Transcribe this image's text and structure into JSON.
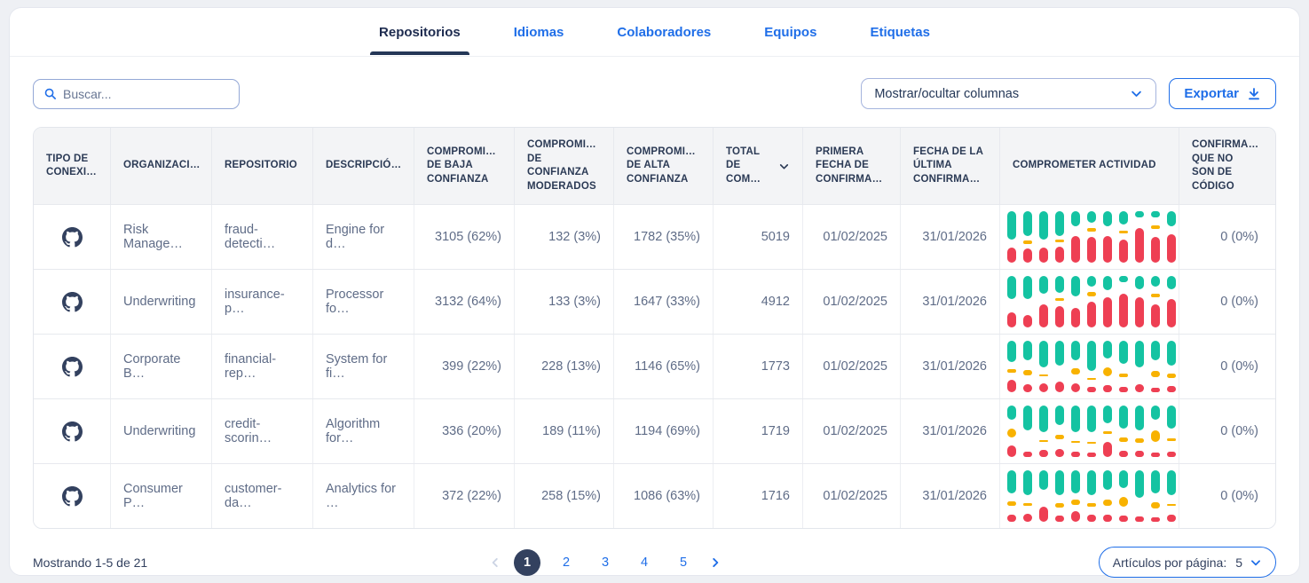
{
  "colors": {
    "accent_blue": "#1f6ee8",
    "navy": "#243757",
    "spark_teal": "#14c3a2",
    "spark_yellow": "#f8b200",
    "spark_red": "#ee3f53",
    "active_page_bg": "#33415f"
  },
  "tabs": [
    {
      "label": "Repositorios",
      "active": true
    },
    {
      "label": "Idiomas",
      "active": false
    },
    {
      "label": "Colaboradores",
      "active": false
    },
    {
      "label": "Equipos",
      "active": false
    },
    {
      "label": "Etiquetas",
      "active": false
    }
  ],
  "toolbar": {
    "search_placeholder": "Buscar...",
    "columns_button_label": "Mostrar/ocultar columnas",
    "export_label": "Exportar"
  },
  "table": {
    "columns": [
      {
        "label": "TIPO DE CONEXI…",
        "align": "left"
      },
      {
        "label": "ORGANIZACI…",
        "align": "left"
      },
      {
        "label": "REPOSITORIO",
        "align": "left"
      },
      {
        "label": "DESCRIPCIÓ…",
        "align": "left"
      },
      {
        "label": "COMPROMI… DE BAJA CONFIANZA",
        "align": "right"
      },
      {
        "label": "COMPROMI… DE CONFIANZA MODERADOS",
        "align": "right"
      },
      {
        "label": "COMPROMI… DE ALTA CONFIANZA",
        "align": "right"
      },
      {
        "label": "TOTAL DE COM…",
        "align": "right",
        "sortable": true
      },
      {
        "label": "PRIMERA FECHA DE CONFIRMA…",
        "align": "right"
      },
      {
        "label": "FECHA DE LA ÚLTIMA CONFIRMA…",
        "align": "right"
      },
      {
        "label": "COMPROMETER ACTIVIDAD",
        "align": "left"
      },
      {
        "label": "CONFIRMA… QUE NO SON DE CÓDIGO",
        "align": "right"
      }
    ],
    "rows": [
      {
        "connection_icon": "github-icon",
        "organization": "Risk Manage…",
        "repository": "fraud-detecti…",
        "description": "Engine for d…",
        "low_confidence": "3105 (62%)",
        "moderate_confidence": "132 (3%)",
        "high_confidence": "1782 (35%)",
        "total_commits": "5019",
        "first_commit_date": "01/02/2025",
        "last_commit_date": "31/01/2026",
        "non_code_commits": "0 (0%)",
        "activity": [
          [
            55,
            0,
            30
          ],
          [
            48,
            6,
            28
          ],
          [
            55,
            0,
            30
          ],
          [
            48,
            6,
            32
          ],
          [
            30,
            0,
            52
          ],
          [
            22,
            6,
            50
          ],
          [
            30,
            0,
            52
          ],
          [
            25,
            6,
            45
          ],
          [
            12,
            0,
            68
          ],
          [
            12,
            6,
            50
          ],
          [
            30,
            0,
            55
          ]
        ]
      },
      {
        "connection_icon": "github-icon",
        "organization": "Underwriting",
        "repository": "insurance-p…",
        "description": "Processor fo…",
        "low_confidence": "3132 (64%)",
        "moderate_confidence": "133 (3%)",
        "high_confidence": "1647 (33%)",
        "total_commits": "4912",
        "first_commit_date": "01/02/2025",
        "last_commit_date": "31/01/2026",
        "non_code_commits": "0 (0%)",
        "activity": [
          [
            45,
            0,
            30
          ],
          [
            45,
            0,
            25
          ],
          [
            35,
            0,
            45
          ],
          [
            32,
            5,
            42
          ],
          [
            40,
            0,
            38
          ],
          [
            20,
            8,
            50
          ],
          [
            28,
            0,
            58
          ],
          [
            12,
            0,
            65
          ],
          [
            25,
            0,
            58
          ],
          [
            20,
            6,
            45
          ],
          [
            25,
            0,
            55
          ]
        ]
      },
      {
        "connection_icon": "github-icon",
        "organization": "Corporate B…",
        "repository": "financial-rep…",
        "description": "System for fi…",
        "low_confidence": "399 (22%)",
        "moderate_confidence": "228 (13%)",
        "high_confidence": "1146 (65%)",
        "total_commits": "1773",
        "first_commit_date": "01/02/2025",
        "last_commit_date": "31/01/2026",
        "non_code_commits": "0 (0%)",
        "activity": [
          [
            42,
            6,
            25
          ],
          [
            38,
            10,
            15
          ],
          [
            52,
            4,
            18
          ],
          [
            48,
            0,
            20
          ],
          [
            38,
            12,
            18
          ],
          [
            58,
            4,
            10
          ],
          [
            34,
            16,
            14
          ],
          [
            44,
            8,
            10
          ],
          [
            52,
            0,
            16
          ],
          [
            38,
            12,
            8
          ],
          [
            48,
            8,
            12
          ]
        ]
      },
      {
        "connection_icon": "github-icon",
        "organization": "Underwriting",
        "repository": "credit-scorin…",
        "description": "Algorithm for…",
        "low_confidence": "336 (20%)",
        "moderate_confidence": "189 (11%)",
        "high_confidence": "1194 (69%)",
        "total_commits": "1719",
        "first_commit_date": "01/02/2025",
        "last_commit_date": "31/01/2026",
        "non_code_commits": "0 (0%)",
        "activity": [
          [
            28,
            18,
            22
          ],
          [
            48,
            0,
            10
          ],
          [
            52,
            4,
            14
          ],
          [
            38,
            10,
            16
          ],
          [
            52,
            4,
            10
          ],
          [
            52,
            4,
            8
          ],
          [
            34,
            5,
            30
          ],
          [
            44,
            8,
            12
          ],
          [
            48,
            10,
            12
          ],
          [
            28,
            22,
            8
          ],
          [
            44,
            5,
            10
          ]
        ]
      },
      {
        "connection_icon": "github-icon",
        "organization": "Consumer P…",
        "repository": "customer-da…",
        "description": "Analytics for …",
        "low_confidence": "372 (22%)",
        "moderate_confidence": "258 (15%)",
        "high_confidence": "1086 (63%)",
        "total_commits": "1716",
        "first_commit_date": "01/02/2025",
        "last_commit_date": "31/01/2026",
        "non_code_commits": "0 (0%)",
        "activity": [
          [
            44,
            8,
            14
          ],
          [
            48,
            4,
            16
          ],
          [
            38,
            0,
            30
          ],
          [
            48,
            8,
            12
          ],
          [
            44,
            10,
            20
          ],
          [
            48,
            8,
            14
          ],
          [
            38,
            12,
            14
          ],
          [
            34,
            18,
            12
          ],
          [
            54,
            0,
            10
          ],
          [
            44,
            12,
            8
          ],
          [
            48,
            4,
            14
          ]
        ]
      }
    ]
  },
  "footer": {
    "showing_text": "Mostrando 1-5 de 21",
    "prev_icon": "chevron-left-icon",
    "pages": [
      "1",
      "2",
      "3",
      "4",
      "5"
    ],
    "active_page": "1",
    "next_icon": "chevron-right-icon",
    "per_page_label": "Artículos por página:",
    "per_page_value": "5"
  }
}
